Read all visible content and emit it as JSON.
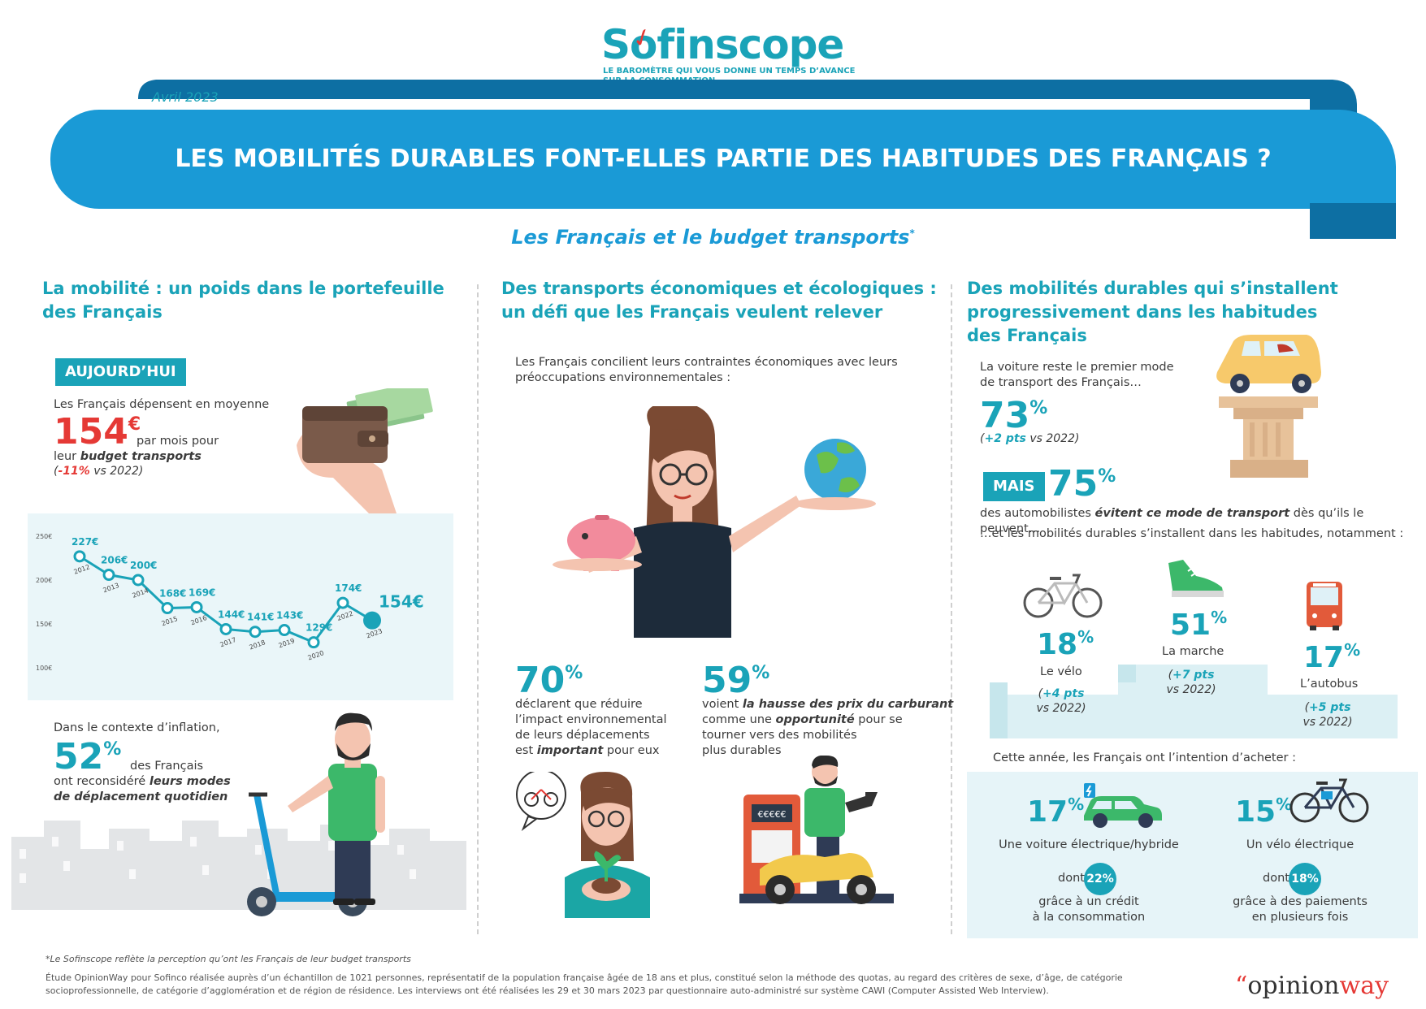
{
  "header": {
    "logo": "Sofinscope",
    "tagline_line1": "LE BAROMÈTRE QUI VOUS DONNE UN TEMPS D’AVANCE",
    "tagline_line2": "SUR LA CONSOMMATION",
    "date": "Avril 2023",
    "title": "LES MOBILITÉS DURABLES FONT-ELLES PARTIE DES HABITUDES DES FRANÇAIS ?",
    "subtitle": "Les Français et le budget transports",
    "subtitle_star": "*"
  },
  "col1": {
    "title_line1": "La mobilité : un poids dans le portefeuille",
    "title_line2": "des Français",
    "badge": "AUJOURD’HUI",
    "intro": "Les Français dépensent en moyenne",
    "amount": "154",
    "amount_unit": "€",
    "amount_text1": "par mois pour",
    "amount_text2_pre": "leur ",
    "amount_text2_bold": "budget transports",
    "change_open": "(",
    "change_value": "-11%",
    "change_rest": " vs 2022)",
    "inflation_intro": "Dans le contexte d’inflation,",
    "inflation_value": "52",
    "inflation_unit": "%",
    "inflation_text1": "des Français",
    "inflation_text2_pre": "ont reconsidéré ",
    "inflation_text2_bold": "leurs modes",
    "inflation_text3": "de déplacement quotidien"
  },
  "chart_data": {
    "type": "line",
    "x": [
      "2012",
      "2013",
      "2014",
      "2015",
      "2016",
      "2017",
      "2018",
      "2019",
      "2020",
      "2022",
      "2023"
    ],
    "values": [
      227,
      206,
      200,
      168,
      169,
      144,
      141,
      143,
      129,
      174,
      154
    ],
    "value_labels": [
      "227€",
      "206€",
      "200€",
      "168€",
      "169€",
      "144€",
      "141€",
      "143€",
      "129€",
      "174€",
      "154€"
    ],
    "y_ticks": [
      "250€",
      "200€",
      "150€",
      "100€"
    ],
    "ylim": [
      100,
      250
    ],
    "grid": false,
    "color": "#1aa3b8"
  },
  "col2": {
    "title_line1": "Des transports économiques et écologiques :",
    "title_line2": "un défi que les Français veulent relever",
    "intro1": "Les Français concilient leurs contraintes économiques avec leurs",
    "intro2": "préoccupations environnementales :",
    "stat1_value": "70",
    "stat1_unit": "%",
    "stat1_l1": "déclarent que réduire",
    "stat1_l2": "l’impact environnemental",
    "stat1_l3": "de leurs déplacements",
    "stat1_l4_pre": "est ",
    "stat1_l4_bold": "important",
    "stat1_l4_post": " pour eux",
    "stat2_value": "59",
    "stat2_unit": "%",
    "stat2_l1_pre": "voient ",
    "stat2_l1_bold": "la hausse des prix du carburant",
    "stat2_l2_pre": "comme une ",
    "stat2_l2_bold": "opportunité",
    "stat2_l2_post": " pour se",
    "stat2_l3": "tourner vers des mobilités",
    "stat2_l4": "plus durables",
    "pump_display": "€€€€€"
  },
  "col3": {
    "title_line1": "Des mobilités durables qui s’installent",
    "title_line2": "progressivement dans les habitudes",
    "title_line3": "des Français",
    "car_l1": "La voiture reste le premier mode",
    "car_l2": "de transport des Français…",
    "car_value": "73",
    "car_unit": "%",
    "car_change_bold": "+2 pts",
    "car_change_rest": " vs 2022)",
    "car_change_open": "(",
    "mais": "MAIS",
    "avoid_value": "75",
    "avoid_unit": "%",
    "avoid_pre": "des automobilistes ",
    "avoid_bold": "évitent ce mode de transport",
    "avoid_post": " dès qu’ils le peuvent…",
    "habits": "…et les mobilités durables s’installent dans les habitudes, notamment :",
    "velo_value": "18",
    "velo_unit": "%",
    "velo_label": "Le vélo",
    "velo_change": "+4 pts",
    "velo_vs": "vs 2022)",
    "marche_value": "51",
    "marche_unit": "%",
    "marche_label": "La marche",
    "marche_change": "+7 pts",
    "marche_vs": "vs 2022)",
    "bus_value": "17",
    "bus_unit": "%",
    "bus_label": "L’autobus",
    "bus_change": "+5 pts",
    "bus_vs": "vs 2022)",
    "paren": "(",
    "intent": "Cette année, les Français ont l’intention d’acheter :",
    "ev_value": "17",
    "ev_unit": "%",
    "ev_label": "Une voiture électrique/hybride",
    "ev_dont": "dont",
    "ev_pill": "22%",
    "ev_sub1": "grâce à un crédit",
    "ev_sub2": "à la consommation",
    "ebike_value": "15",
    "ebike_unit": "%",
    "ebike_label": "Un vélo électrique",
    "ebike_dont": "dont",
    "ebike_pill": "18%",
    "ebike_sub1": "grâce à des paiements",
    "ebike_sub2": "en plusieurs fois"
  },
  "footer": {
    "note": "*Le Sofinscope reflète la perception qu’ont les Français de leur budget transports",
    "study1": "Étude OpinionWay pour Sofinco réalisée auprès d’un échantillon de 1021 personnes, représentatif de la population française âgée de 18 ans et plus, constitué selon la méthode des quotas, au regard des critères de sexe, d’âge, de catégorie",
    "study2": "socioprofessionnelle, de catégorie d’agglomération et de région de résidence. Les interviews ont été réalisées les 29 et 30 mars 2023 par questionnaire auto-administré sur système CAWI (Computer Assisted Web Interview).",
    "brand_quote": "“",
    "brand_a": "opinion",
    "brand_b": "way"
  }
}
